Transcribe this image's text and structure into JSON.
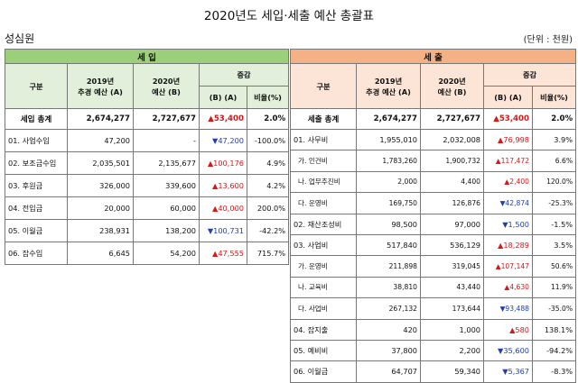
{
  "title": "2020년도 세입·세출 예산 총괄표",
  "org": "성심원",
  "unit": "(단위 : 천원)",
  "headers": {
    "income_band": "세   입",
    "expense_band": "세   출",
    "category": "구분",
    "y2019": "2019년\n추경 예산 (A)",
    "y2019_l1": "2019년",
    "y2019_l2": "추경 예산 (A)",
    "y2020_l1": "2020년",
    "y2020_l2": "예산 (B)",
    "change": "증감",
    "diff": "(B) (A)",
    "ratio": "비율(%)"
  },
  "income": [
    {
      "label": "세입 총계",
      "y2019": "2,674,277",
      "y2020": "2,727,677",
      "dir": "up",
      "diff": "53,400",
      "ratio": "2.0%",
      "total": true
    },
    {
      "label": "01. 사업수입",
      "y2019": "47,200",
      "y2020": "-",
      "dir": "dn",
      "diff": "47,200",
      "ratio": "-100.0%"
    },
    {
      "label": "02. 보조금수입",
      "y2019": "2,035,501",
      "y2020": "2,135,677",
      "dir": "up",
      "diff": "100,176",
      "ratio": "4.9%"
    },
    {
      "label": "03. 후원금",
      "y2019": "326,000",
      "y2020": "339,600",
      "dir": "up",
      "diff": "13,600",
      "ratio": "4.2%"
    },
    {
      "label": "04. 전입금",
      "y2019": "20,000",
      "y2020": "60,000",
      "dir": "up",
      "diff": "40,000",
      "ratio": "200.0%"
    },
    {
      "label": "05. 이월금",
      "y2019": "238,931",
      "y2020": "138,200",
      "dir": "dn",
      "diff": "100,731",
      "ratio": "-42.2%"
    },
    {
      "label": "06. 잡수입",
      "y2019": "6,645",
      "y2020": "54,200",
      "dir": "up",
      "diff": "47,555",
      "ratio": "715.7%"
    }
  ],
  "expense": [
    {
      "label": "세출 총계",
      "y2019": "2,674,277",
      "y2020": "2,727,677",
      "dir": "up",
      "diff": "53,400",
      "ratio": "2.0%",
      "total": true
    },
    {
      "label": "01. 사무비",
      "y2019": "1,955,010",
      "y2020": "2,032,008",
      "dir": "up",
      "diff": "76,998",
      "ratio": "3.9%"
    },
    {
      "label": "가. 인건비",
      "y2019": "1,783,260",
      "y2020": "1,900,732",
      "dir": "up",
      "diff": "117,472",
      "ratio": "6.6%",
      "sub": true
    },
    {
      "label": "나. 업무추진비",
      "y2019": "2,000",
      "y2020": "4,400",
      "dir": "up",
      "diff": "2,400",
      "ratio": "120.0%",
      "sub": true
    },
    {
      "label": "다. 운영비",
      "y2019": "169,750",
      "y2020": "126,876",
      "dir": "dn",
      "diff": "42,874",
      "ratio": "-25.3%",
      "sub": true
    },
    {
      "label": "02. 재산조성비",
      "y2019": "98,500",
      "y2020": "97,000",
      "dir": "dn",
      "diff": "1,500",
      "ratio": "-1.5%"
    },
    {
      "label": "03. 사업비",
      "y2019": "517,840",
      "y2020": "536,129",
      "dir": "up",
      "diff": "18,289",
      "ratio": "3.5%"
    },
    {
      "label": "가. 운영비",
      "y2019": "211,898",
      "y2020": "319,045",
      "dir": "up",
      "diff": "107,147",
      "ratio": "50.6%",
      "sub": true
    },
    {
      "label": "나. 교육비",
      "y2019": "38,810",
      "y2020": "43,440",
      "dir": "up",
      "diff": "4,630",
      "ratio": "11.9%",
      "sub": true
    },
    {
      "label": "다. 사업비",
      "y2019": "267,132",
      "y2020": "173,644",
      "dir": "dn",
      "diff": "93,488",
      "ratio": "-35.0%",
      "sub": true
    },
    {
      "label": "04. 잡지출",
      "y2019": "420",
      "y2020": "1,000",
      "dir": "up",
      "diff": "580",
      "ratio": "138.1%"
    },
    {
      "label": "05. 예비비",
      "y2019": "37,800",
      "y2020": "2,200",
      "dir": "dn",
      "diff": "35,600",
      "ratio": "-94.2%"
    },
    {
      "label": "06. 이월금",
      "y2019": "64,707",
      "y2020": "59,340",
      "dir": "dn",
      "diff": "5,367",
      "ratio": "-8.3%"
    }
  ]
}
